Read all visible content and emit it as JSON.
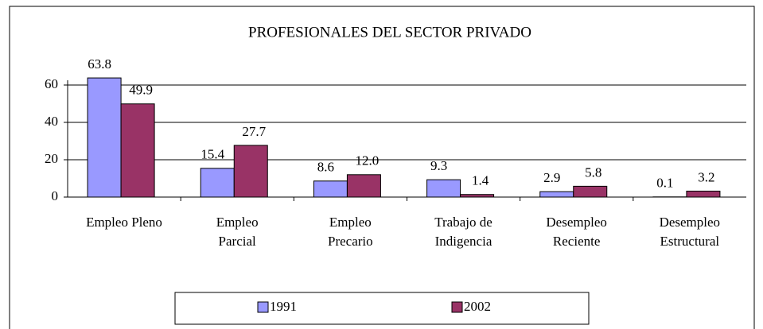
{
  "chart_data": {
    "type": "bar",
    "title": "PROFESIONALES DEL SECTOR PRIVADO",
    "categories": [
      "Empleo Pleno",
      "Empleo\nParcial",
      "Empleo\nPrecario",
      "Trabajo de\nIndigencia",
      "Desempleo\nReciente",
      "Desempleo\nEstructural"
    ],
    "series": [
      {
        "name": "1991",
        "color": "#9999ff",
        "values": [
          63.8,
          15.4,
          8.6,
          9.3,
          2.9,
          0.1
        ],
        "value_labels": [
          "63.8",
          "15.4",
          "8.6",
          "9.3",
          "2.9",
          "0.1"
        ]
      },
      {
        "name": "2002",
        "color": "#993366",
        "values": [
          49.9,
          27.7,
          12.0,
          1.4,
          5.8,
          3.2
        ],
        "value_labels": [
          "49.9",
          "27.7",
          "12.0",
          "1.4",
          "5.8",
          "3.2"
        ]
      }
    ],
    "ylim": [
      0,
      60
    ],
    "yticks": [
      0,
      20,
      40,
      60
    ],
    "grid": true,
    "legend": "bottom"
  }
}
